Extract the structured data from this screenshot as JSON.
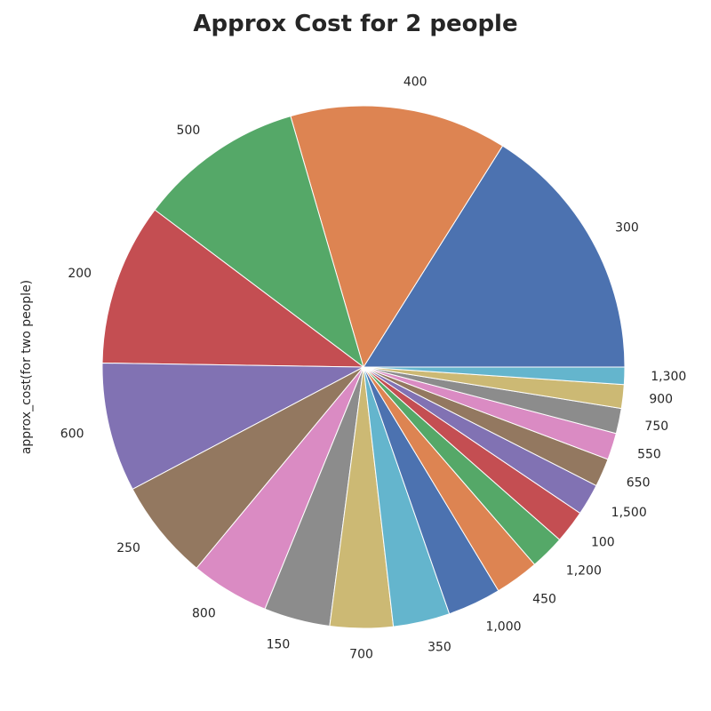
{
  "chart_data": {
    "type": "pie",
    "title": "Approx Cost for 2 people",
    "ylabel": "approx_cost(for two people)",
    "xlabel": "",
    "start_angle": 0,
    "direction": "counterclockwise",
    "categories": [
      "300",
      "400",
      "500",
      "200",
      "600",
      "250",
      "800",
      "150",
      "700",
      "350",
      "1,000",
      "450",
      "1,200",
      "100",
      "1,500",
      "650",
      "550",
      "750",
      "900",
      "1,300"
    ],
    "values": [
      16.5,
      13.8,
      10.5,
      10.3,
      8.2,
      6.4,
      5.0,
      4.2,
      4.0,
      3.6,
      3.4,
      2.8,
      2.2,
      2.1,
      2.0,
      1.8,
      1.7,
      1.6,
      1.5,
      1.1
    ],
    "colors": [
      "#4c72b0",
      "#dd8452",
      "#55a868",
      "#c44e52",
      "#8172b3",
      "#937860",
      "#da8bc3",
      "#8c8c8c",
      "#ccb974",
      "#64b5cd",
      "#4c72b0",
      "#dd8452",
      "#55a868",
      "#c44e52",
      "#8172b3",
      "#937860",
      "#da8bc3",
      "#8c8c8c",
      "#ccb974",
      "#64b5cd"
    ]
  }
}
